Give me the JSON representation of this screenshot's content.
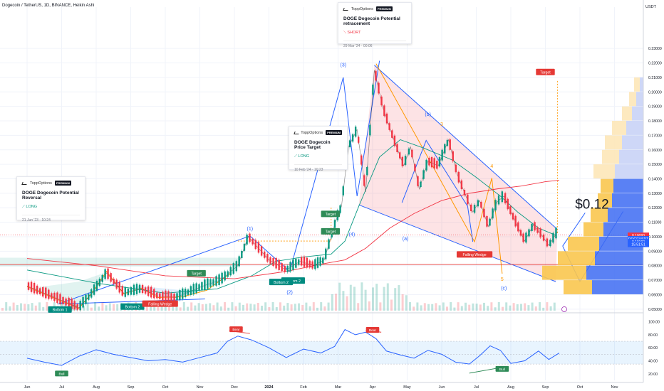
{
  "header": {
    "symbol_line": "Dogecoin / TetherUS, 1D, BINANCE, Heikin Ashi",
    "currency": "USDT"
  },
  "ideas": [
    {
      "brand": "ToppOptions",
      "badge": "PREMIUM",
      "title": "DOGE Dogecoin Potential Reversal",
      "direction": "LONG",
      "timestamp": "21 Jun '23 · 10:24"
    },
    {
      "brand": "ToppOptions",
      "badge": "PREMIUM",
      "title": "DOGE Dogecoin Price Target",
      "direction": "LONG",
      "timestamp": "10 Feb '24 · 10:23"
    },
    {
      "brand": "ToppOptions",
      "badge": "PREMIUM",
      "title": "DOGE Dogecoin Potential retracement",
      "direction": "SHORT",
      "timestamp": "29 Mar '24 · 00:06"
    }
  ],
  "chart_data": [
    {
      "type": "line",
      "panel": "price",
      "x_ticks": [
        "Jun",
        "Jul",
        "Aug",
        "Sep",
        "Oct",
        "Nov",
        "Dec",
        "2024",
        "Feb",
        "Mar",
        "Apr",
        "May",
        "Jun",
        "Jul",
        "Aug",
        "Sep",
        "Oct",
        "Nov"
      ],
      "y_ticks": [
        "0.23000",
        "0.22000",
        "0.21000",
        "0.20000",
        "0.19000",
        "0.18000",
        "0.17000",
        "0.16000",
        "0.15000",
        "0.14000",
        "0.13000",
        "0.12000",
        "0.11000",
        "0.10000",
        "0.09000",
        "0.08000",
        "0.07000",
        "0.06000",
        "0.05000"
      ],
      "ylim": [
        0.045,
        0.235
      ],
      "price_series": {
        "x": [
          0,
          1.5,
          1.9,
          2.3,
          2.8,
          3.3,
          3.8,
          4.3,
          4.7,
          5.1,
          5.6,
          6.1,
          6.4,
          7,
          7.5,
          7.9,
          8.3,
          8.6,
          8.95,
          9.1,
          9.3,
          9.55,
          9.8,
          10.05,
          10.3,
          10.6,
          10.9,
          11.1,
          11.35,
          11.6,
          11.9,
          12.2,
          12.45,
          12.7,
          12.9,
          13.1,
          13.35,
          13.6,
          13.8,
          14.1,
          14.4,
          14.65,
          14.9,
          15.1,
          15.35
        ],
        "y": [
          0.066,
          0.051,
          0.0615,
          0.075,
          0.061,
          0.064,
          0.059,
          0.058,
          0.062,
          0.066,
          0.07,
          0.08,
          0.1,
          0.084,
          0.077,
          0.083,
          0.08,
          0.084,
          0.112,
          0.121,
          0.162,
          0.174,
          0.131,
          0.215,
          0.189,
          0.168,
          0.149,
          0.162,
          0.133,
          0.152,
          0.149,
          0.167,
          0.143,
          0.128,
          0.117,
          0.125,
          0.107,
          0.124,
          0.128,
          0.112,
          0.097,
          0.108,
          0.101,
          0.094,
          0.1035
        ]
      },
      "moving_averages": [
        {
          "color": "#089981",
          "x": [
            0,
            2,
            4,
            5.5,
            6.5,
            7.2,
            8,
            8.8,
            9.2,
            9.6,
            10.2,
            10.8,
            11.5,
            12.3,
            13,
            13.7,
            14.2,
            14.8,
            15.3
          ],
          "y": [
            0.077,
            0.068,
            0.061,
            0.064,
            0.073,
            0.083,
            0.086,
            0.088,
            0.097,
            0.121,
            0.155,
            0.167,
            0.161,
            0.153,
            0.141,
            0.128,
            0.117,
            0.106,
            0.101
          ]
        },
        {
          "color": "#f23645",
          "x": [
            0,
            2,
            4,
            6,
            7.5,
            8.5,
            9.2,
            9.8,
            10.5,
            11.2,
            12,
            12.8,
            13.6,
            14.3,
            15,
            15.4
          ],
          "y": [
            0.085,
            0.08,
            0.073,
            0.071,
            0.076,
            0.081,
            0.084,
            0.092,
            0.106,
            0.116,
            0.125,
            0.13,
            0.133,
            0.135,
            0.138,
            0.139
          ]
        }
      ],
      "price_labels": [
        {
          "text": "0.10093",
          "y": 0.1009,
          "color": "#f23645"
        },
        {
          "text": "DOGEUSDT",
          "y": 0.0985,
          "color": "#2962ff"
        },
        {
          "text": "0.10193",
          "y": 0.0965,
          "color": "#2962ff"
        },
        {
          "text": "15:51:51",
          "y": 0.0948,
          "color": "#2962ff"
        }
      ],
      "wave_labels": [
        {
          "text": "(1)",
          "x": 6.45,
          "y": 0.1045,
          "color": "#2962ff"
        },
        {
          "text": "(2)",
          "x": 7.6,
          "y": 0.0605,
          "color": "#2962ff"
        },
        {
          "text": "(3)",
          "x": 9.15,
          "y": 0.2175,
          "color": "#2962ff"
        },
        {
          "text": "(4)",
          "x": 9.4,
          "y": 0.1005,
          "color": "#2962ff"
        },
        {
          "text": "(a)",
          "x": 10.95,
          "y": 0.0975,
          "color": "#2962ff"
        },
        {
          "text": "(b)",
          "x": 11.6,
          "y": 0.1835,
          "color": "#2962ff"
        },
        {
          "text": "(c)",
          "x": 13.8,
          "y": 0.0635,
          "color": "#2962ff"
        },
        {
          "text": "3",
          "x": 12.0,
          "y": 0.1765,
          "color": "#ff9800"
        },
        {
          "text": "4",
          "x": 13.45,
          "y": 0.1475,
          "color": "#ff9800"
        },
        {
          "text": "5",
          "x": 13.75,
          "y": 0.0695,
          "color": "#ff9800"
        }
      ],
      "tags": [
        {
          "text": "Target",
          "x": 4.9,
          "y": 0.0745,
          "bg": "#2e8b57"
        },
        {
          "text": "Target",
          "x": 8.78,
          "y": 0.1155,
          "bg": "#2e8b57"
        },
        {
          "text": "Target",
          "x": 8.78,
          "y": 0.1035,
          "bg": "#2e8b57"
        },
        {
          "text": "Target",
          "x": 15.0,
          "y": 0.2135,
          "bg": "#e53935"
        },
        {
          "text": "Bottom 1",
          "x": 0.95,
          "y": 0.0495,
          "bg": "#008b80"
        },
        {
          "text": "Bottom 2",
          "x": 3.05,
          "y": 0.0515,
          "bg": "#008b80"
        },
        {
          "text": "Bottom 2",
          "x": 7.7,
          "y": 0.0695,
          "bg": "#008b80"
        },
        {
          "text": "Bottom 2",
          "x": 7.35,
          "y": 0.0685,
          "bg": "#008b80"
        },
        {
          "text": "Falling Wedge",
          "x": 3.85,
          "y": 0.0535,
          "bg": "#e53935"
        },
        {
          "text": "Falling Wedge",
          "x": 12.95,
          "y": 0.0875,
          "bg": "#e53935"
        }
      ],
      "big_label": {
        "text": "$0.12",
        "x": 16.35,
        "y": 0.1195
      },
      "volume_profile": {
        "rows": [
          {
            "y": 0.205,
            "blue": 5,
            "orange": 8
          },
          {
            "y": 0.195,
            "blue": 10,
            "orange": 10
          },
          {
            "y": 0.185,
            "blue": 16,
            "orange": 14
          },
          {
            "y": 0.175,
            "blue": 24,
            "orange": 20
          },
          {
            "y": 0.165,
            "blue": 30,
            "orange": 24
          },
          {
            "y": 0.155,
            "blue": 34,
            "orange": 24
          },
          {
            "y": 0.145,
            "blue": 40,
            "orange": 30
          },
          {
            "y": 0.135,
            "blue": 42,
            "orange": 18
          },
          {
            "y": 0.125,
            "blue": 44,
            "orange": 20
          },
          {
            "y": 0.115,
            "blue": 50,
            "orange": 24
          },
          {
            "y": 0.105,
            "blue": 56,
            "orange": 28
          },
          {
            "y": 0.095,
            "blue": 62,
            "orange": 44
          },
          {
            "y": 0.085,
            "blue": 68,
            "orange": 52
          },
          {
            "y": 0.075,
            "blue": 80,
            "orange": 62
          },
          {
            "y": 0.065,
            "blue": 72,
            "orange": 40
          }
        ]
      }
    },
    {
      "type": "line",
      "panel": "rsi",
      "y_ticks": [
        "100.00",
        "80.00",
        "60.00",
        "40.00",
        "20.00"
      ],
      "ylim": [
        10,
        105
      ],
      "band": [
        35,
        70
      ],
      "series": [
        {
          "x": [
            0,
            0.5,
            1.0,
            1.5,
            2.0,
            2.5,
            3.0,
            3.5,
            4.0,
            4.5,
            5.0,
            5.5,
            5.8,
            6.1,
            6.5,
            7.0,
            7.5,
            8.0,
            8.5,
            8.9,
            9.2,
            9.5,
            9.8,
            10.1,
            10.4,
            10.8,
            11.2,
            11.6,
            12.0,
            12.4,
            12.8,
            13.1,
            13.4,
            13.7,
            14.0,
            14.4,
            14.8,
            15.1,
            15.4
          ],
          "y": [
            44,
            38,
            33,
            47,
            57,
            50,
            45,
            40,
            42,
            38,
            45,
            52,
            70,
            78,
            72,
            60,
            45,
            58,
            52,
            62,
            88,
            80,
            84,
            74,
            55,
            49,
            44,
            56,
            50,
            38,
            35,
            48,
            63,
            56,
            36,
            40,
            55,
            42,
            52
          ]
        }
      ],
      "tags": [
        {
          "text": "Bear",
          "x": 6.05,
          "y": 88,
          "bg": "#e53935"
        },
        {
          "text": "Bear",
          "x": 10.0,
          "y": 87,
          "bg": "#e53935"
        },
        {
          "text": "Bull",
          "x": 1.0,
          "y": 20,
          "bg": "#2e8b57"
        },
        {
          "text": "Bull",
          "x": 13.75,
          "y": 27,
          "bg": "#2e8b57"
        }
      ]
    }
  ]
}
